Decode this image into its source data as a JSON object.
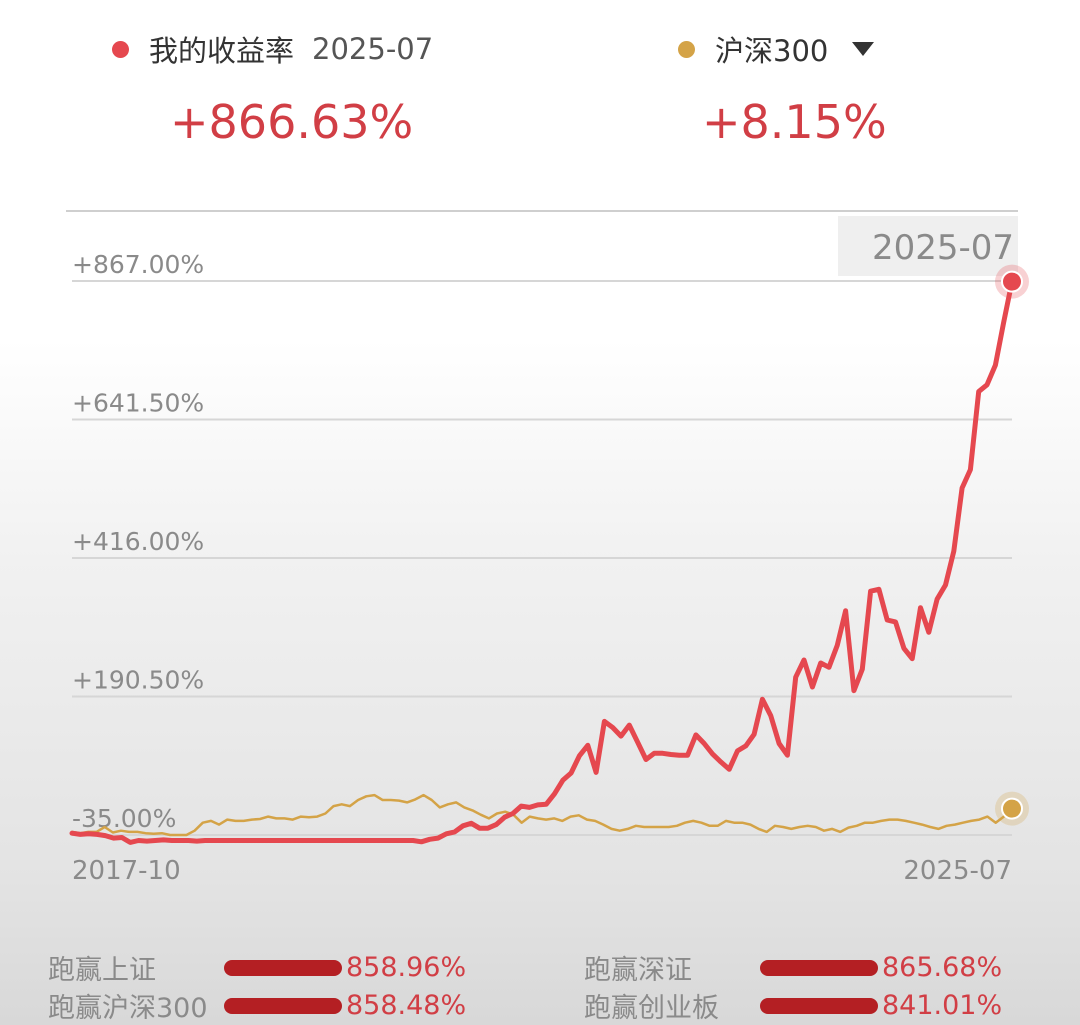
{
  "legend": {
    "mine": {
      "label": "我的收益率",
      "period": "2025-07",
      "value": "+866.63%",
      "color": "#e5484f"
    },
    "benchmark": {
      "label": "沪深300",
      "value": "+8.15%",
      "color": "#d4a347"
    }
  },
  "chart_data": {
    "type": "line",
    "x_start_label": "2017-10",
    "x_end_label": "2025-07",
    "hover_label": "2025-07",
    "y_ticks": [
      "+867.00%",
      "+641.50%",
      "+416.00%",
      "+190.50%",
      "-35.00%"
    ],
    "ylim": [
      -35,
      867
    ],
    "grid": true,
    "series": [
      {
        "name": "我的收益率",
        "color": "#e5484f",
        "values": [
          -32,
          -34,
          -33,
          -34,
          -36,
          -40,
          -39,
          -47,
          -44,
          -45,
          -44,
          -43,
          -44,
          -44,
          -44,
          -45,
          -44,
          -44,
          -44,
          -44,
          -44,
          -44,
          -44,
          -44,
          -44,
          -44,
          -44,
          -44,
          -44,
          -44,
          -44,
          -44,
          -44,
          -44,
          -44,
          -44,
          -44,
          -44,
          -44,
          -44,
          -44,
          -44,
          -46,
          -42,
          -40,
          -33,
          -30,
          -20,
          -16,
          -24,
          -24,
          -18,
          -6,
          0,
          12,
          10,
          14,
          15,
          32,
          54,
          66,
          94,
          111,
          67,
          150,
          140,
          126,
          144,
          116,
          88,
          98,
          98,
          96,
          95,
          95,
          128,
          114,
          97,
          84,
          72,
          102,
          110,
          129,
          186,
          159,
          114,
          95,
          222,
          250,
          206,
          245,
          238,
          274,
          330,
          200,
          235,
          362,
          365,
          315,
          312,
          269,
          252,
          335,
          295,
          349,
          372,
          427,
          530,
          560,
          687,
          698,
          730,
          800,
          866
        ]
      },
      {
        "name": "沪深300",
        "color": "#d4a347",
        "values": [
          -30,
          -32,
          -30,
          -30,
          -22,
          -31,
          -28,
          -30,
          -30,
          -32,
          -33,
          -32,
          -35,
          -35,
          -35,
          -28,
          -15,
          -12,
          -18,
          -10,
          -12,
          -12,
          -10,
          -9,
          -5,
          -8,
          -8,
          -10,
          -5,
          -6,
          -5,
          0,
          12,
          15,
          12,
          22,
          28,
          30,
          22,
          22,
          21,
          18,
          23,
          30,
          22,
          10,
          15,
          18,
          10,
          5,
          -2,
          -8,
          0,
          3,
          -2,
          -15,
          -5,
          -8,
          -10,
          -8,
          -12,
          -5,
          -3,
          -10,
          -12,
          -18,
          -25,
          -28,
          -25,
          -20,
          -22,
          -22,
          -22,
          -22,
          -20,
          -15,
          -12,
          -15,
          -20,
          -20,
          -12,
          -15,
          -15,
          -18,
          -25,
          -30,
          -20,
          -22,
          -25,
          -22,
          -20,
          -22,
          -28,
          -25,
          -30,
          -23,
          -20,
          -15,
          -15,
          -12,
          -10,
          -10,
          -12,
          -15,
          -18,
          -22,
          -25,
          -20,
          -18,
          -15,
          -12,
          -10,
          -5,
          -15,
          -5,
          8
        ]
      }
    ]
  },
  "comparisons": [
    {
      "label": "跑赢上证",
      "value": "858.96%"
    },
    {
      "label": "跑赢深证",
      "value": "865.68%"
    },
    {
      "label": "跑赢沪深300",
      "value": "858.48%"
    },
    {
      "label": "跑赢创业板",
      "value": "841.01%"
    }
  ]
}
